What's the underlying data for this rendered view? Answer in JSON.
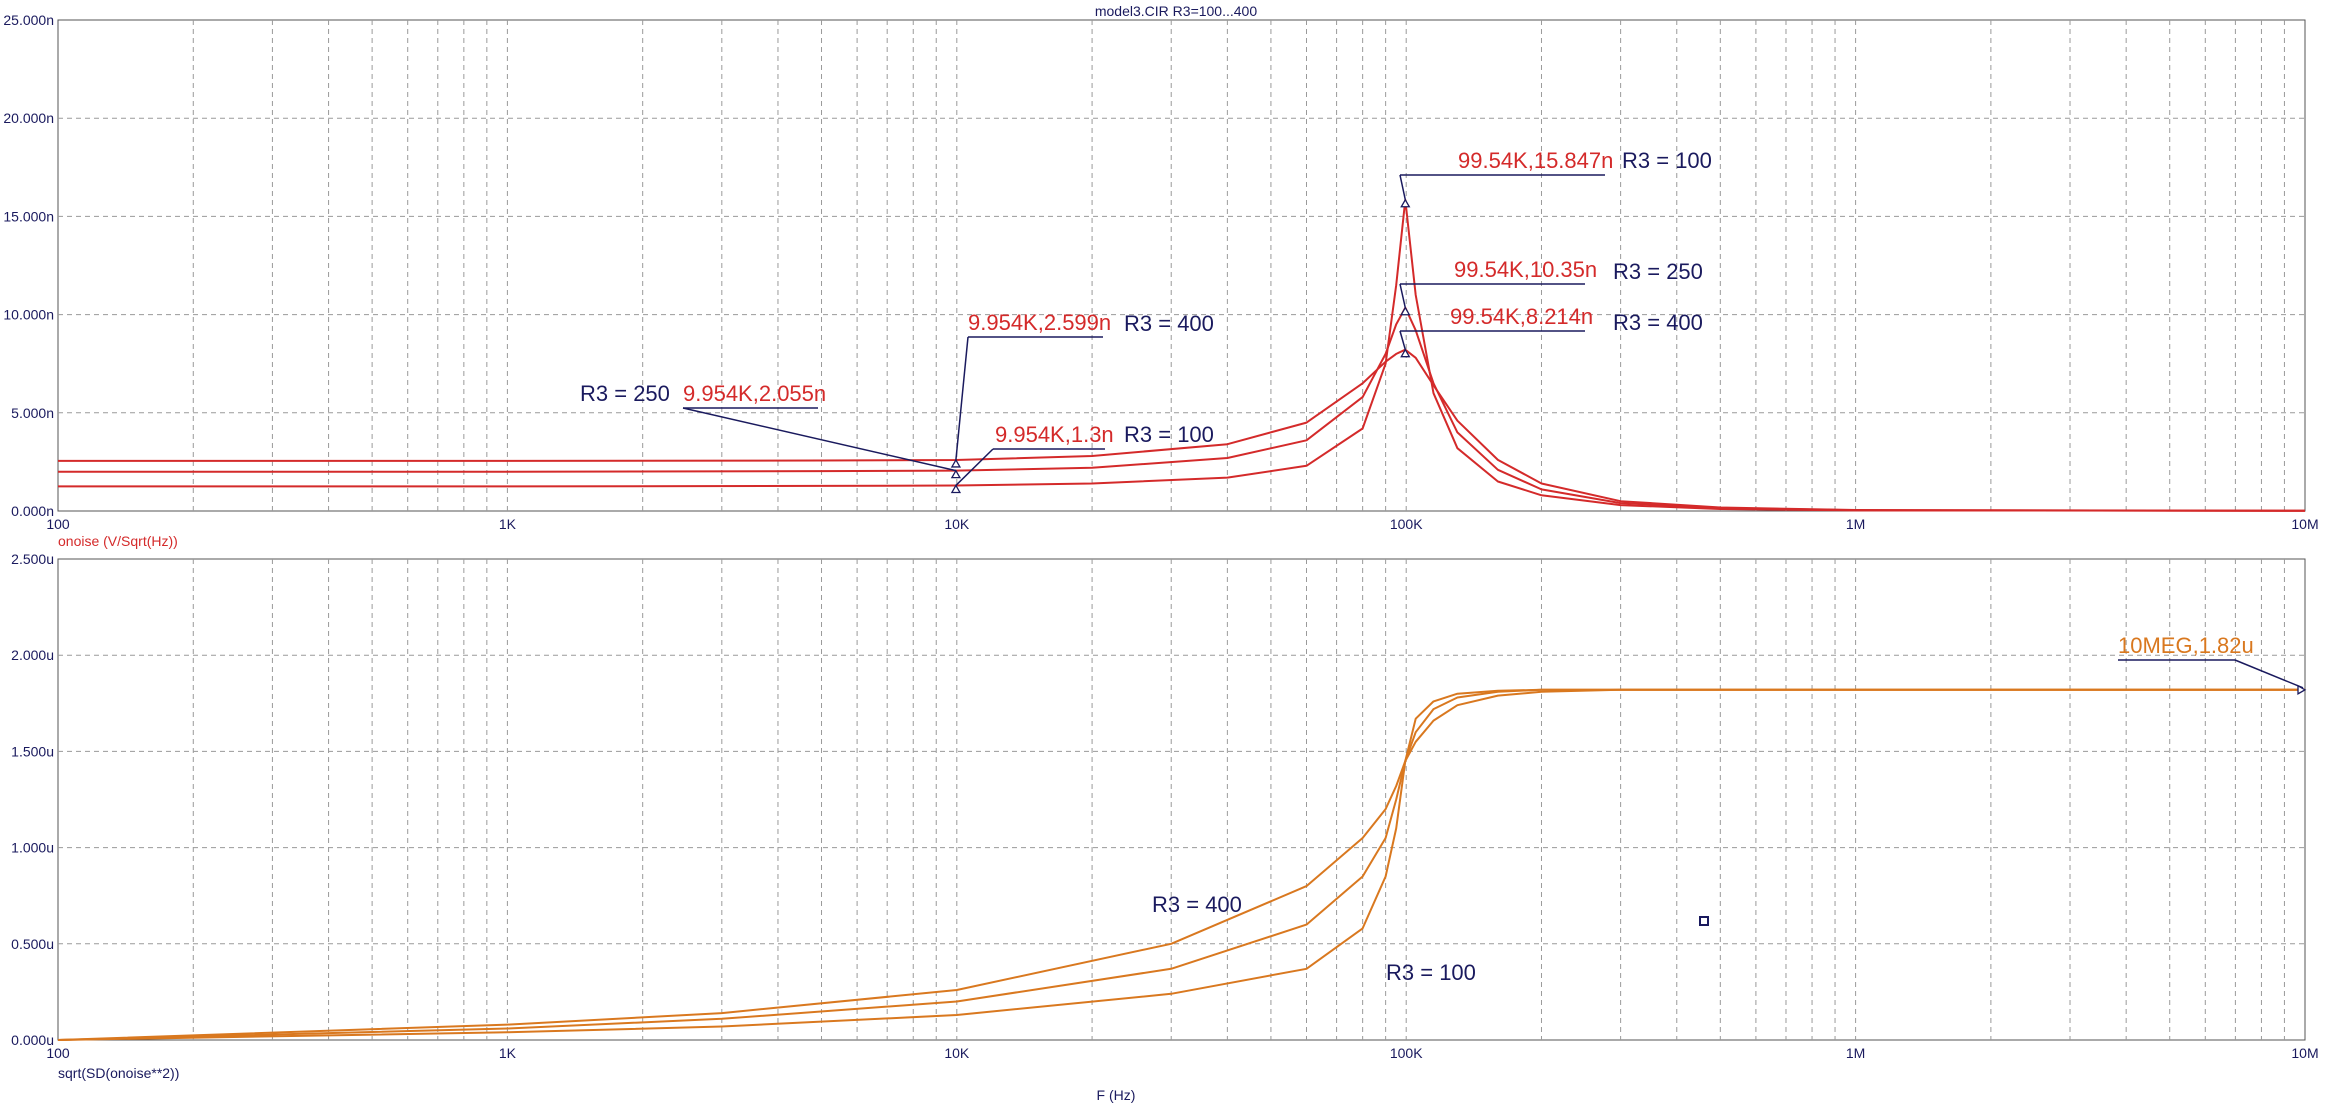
{
  "window": {
    "title": "model3.CIR R3=100...400"
  },
  "colors": {
    "noise": "#d42a2a",
    "integrated": "#d9781f",
    "grid": "#9a9a9a",
    "label": "#1a1a5e",
    "axis": "#555555"
  },
  "chart_data": [
    {
      "type": "line",
      "xscale": "log",
      "xlim": [
        100,
        10000000
      ],
      "ylim": [
        0,
        25
      ],
      "yunit": "n",
      "xticks": [
        {
          "v": 100,
          "label": "100"
        },
        {
          "v": 1000,
          "label": "1K"
        },
        {
          "v": 10000,
          "label": "10K"
        },
        {
          "v": 100000,
          "label": "100K"
        },
        {
          "v": 1000000,
          "label": "1M"
        },
        {
          "v": 10000000,
          "label": "10M"
        }
      ],
      "yticks": [
        {
          "v": 0,
          "label": "0.000n"
        },
        {
          "v": 5,
          "label": "5.000n"
        },
        {
          "v": 10,
          "label": "10.000n"
        },
        {
          "v": 15,
          "label": "15.000n"
        },
        {
          "v": 20,
          "label": "20.000n"
        },
        {
          "v": 25,
          "label": "25.000n"
        }
      ],
      "ylabel": "onoise (V/Sqrt(Hz))",
      "series": [
        {
          "name": "R3 = 100",
          "x": [
            100,
            1000,
            5000,
            9954,
            20000,
            40000,
            60000,
            80000,
            90000,
            95000,
            99540,
            105000,
            115000,
            130000,
            160000,
            200000,
            300000,
            500000,
            1000000,
            10000000
          ],
          "y": [
            1.25,
            1.25,
            1.28,
            1.3,
            1.4,
            1.7,
            2.3,
            4.2,
            7.5,
            11.5,
            15.847,
            11,
            6,
            3.2,
            1.5,
            0.8,
            0.3,
            0.1,
            0.03,
            0.01
          ]
        },
        {
          "name": "R3 = 250",
          "x": [
            100,
            1000,
            5000,
            9954,
            20000,
            40000,
            60000,
            80000,
            90000,
            95000,
            99540,
            105000,
            115000,
            130000,
            160000,
            200000,
            300000,
            500000,
            1000000,
            10000000
          ],
          "y": [
            2,
            2,
            2.03,
            2.055,
            2.2,
            2.7,
            3.6,
            5.8,
            8,
            9.5,
            10.35,
            9.2,
            6.5,
            4,
            2.1,
            1.1,
            0.4,
            0.15,
            0.04,
            0.01
          ]
        },
        {
          "name": "R3 = 400",
          "x": [
            100,
            1000,
            5000,
            9954,
            20000,
            40000,
            60000,
            80000,
            90000,
            95000,
            99540,
            105000,
            115000,
            130000,
            160000,
            200000,
            300000,
            500000,
            1000000,
            10000000
          ],
          "y": [
            2.55,
            2.55,
            2.57,
            2.599,
            2.8,
            3.4,
            4.5,
            6.5,
            7.6,
            8,
            8.214,
            7.8,
            6.4,
            4.6,
            2.6,
            1.4,
            0.5,
            0.18,
            0.05,
            0.01
          ]
        }
      ],
      "annotations": [
        {
          "point": [
            99540,
            15.847
          ],
          "text": "99.54K,15.847n",
          "label": "R3 = 100"
        },
        {
          "point": [
            99540,
            10.35
          ],
          "text": "99.54K,10.35n",
          "label": "R3 = 250"
        },
        {
          "point": [
            99540,
            8.214
          ],
          "text": "99.54K,8.214n",
          "label": "R3 = 400"
        },
        {
          "point": [
            9954,
            2.599
          ],
          "text": "9.954K,2.599n",
          "label": "R3 = 400"
        },
        {
          "point": [
            9954,
            2.055
          ],
          "text": "9.954K,2.055n",
          "label": "R3 = 250"
        },
        {
          "point": [
            9954,
            1.3
          ],
          "text": "9.954K,1.3n",
          "label": "R3 = 100"
        }
      ]
    },
    {
      "type": "line",
      "xscale": "log",
      "xlim": [
        100,
        10000000
      ],
      "ylim": [
        0,
        2.5
      ],
      "yunit": "u",
      "xticks": [
        {
          "v": 100,
          "label": "100"
        },
        {
          "v": 1000,
          "label": "1K"
        },
        {
          "v": 10000,
          "label": "10K"
        },
        {
          "v": 100000,
          "label": "100K"
        },
        {
          "v": 1000000,
          "label": "1M"
        },
        {
          "v": 10000000,
          "label": "10M"
        }
      ],
      "yticks": [
        {
          "v": 0,
          "label": "0.000u"
        },
        {
          "v": 0.5,
          "label": "0.500u"
        },
        {
          "v": 1,
          "label": "1.000u"
        },
        {
          "v": 1.5,
          "label": "1.500u"
        },
        {
          "v": 2,
          "label": "2.000u"
        },
        {
          "v": 2.5,
          "label": "2.500u"
        }
      ],
      "ylabel": "sqrt(SD(onoise**2))",
      "xlabel": "F (Hz)",
      "series": [
        {
          "name": "R3 = 100",
          "x": [
            100,
            1000,
            3000,
            10000,
            30000,
            60000,
            80000,
            90000,
            95000,
            99540,
            105000,
            115000,
            130000,
            160000,
            200000,
            300000,
            1000000,
            10000000
          ],
          "y": [
            0,
            0.04,
            0.07,
            0.13,
            0.24,
            0.37,
            0.58,
            0.85,
            1.1,
            1.45,
            1.67,
            1.76,
            1.8,
            1.815,
            1.82,
            1.82,
            1.82,
            1.82
          ]
        },
        {
          "name": "R3 = 250",
          "x": [
            100,
            1000,
            3000,
            10000,
            30000,
            60000,
            80000,
            90000,
            95000,
            99540,
            105000,
            115000,
            130000,
            160000,
            200000,
            300000,
            1000000,
            10000000
          ],
          "y": [
            0,
            0.06,
            0.11,
            0.2,
            0.37,
            0.6,
            0.85,
            1.05,
            1.25,
            1.45,
            1.6,
            1.72,
            1.78,
            1.81,
            1.82,
            1.82,
            1.82,
            1.82
          ]
        },
        {
          "name": "R3 = 400",
          "x": [
            100,
            1000,
            3000,
            10000,
            30000,
            60000,
            80000,
            90000,
            95000,
            99540,
            105000,
            115000,
            130000,
            160000,
            200000,
            300000,
            1000000,
            10000000
          ],
          "y": [
            0,
            0.08,
            0.14,
            0.26,
            0.5,
            0.8,
            1.05,
            1.2,
            1.32,
            1.45,
            1.55,
            1.66,
            1.74,
            1.79,
            1.81,
            1.82,
            1.82,
            1.82
          ]
        }
      ],
      "annotations": [
        {
          "point": [
            10000000,
            1.82
          ],
          "text": "10MEG,1.82u"
        }
      ],
      "curve_labels": [
        "R3 = 400",
        "R3 = 100"
      ]
    }
  ]
}
